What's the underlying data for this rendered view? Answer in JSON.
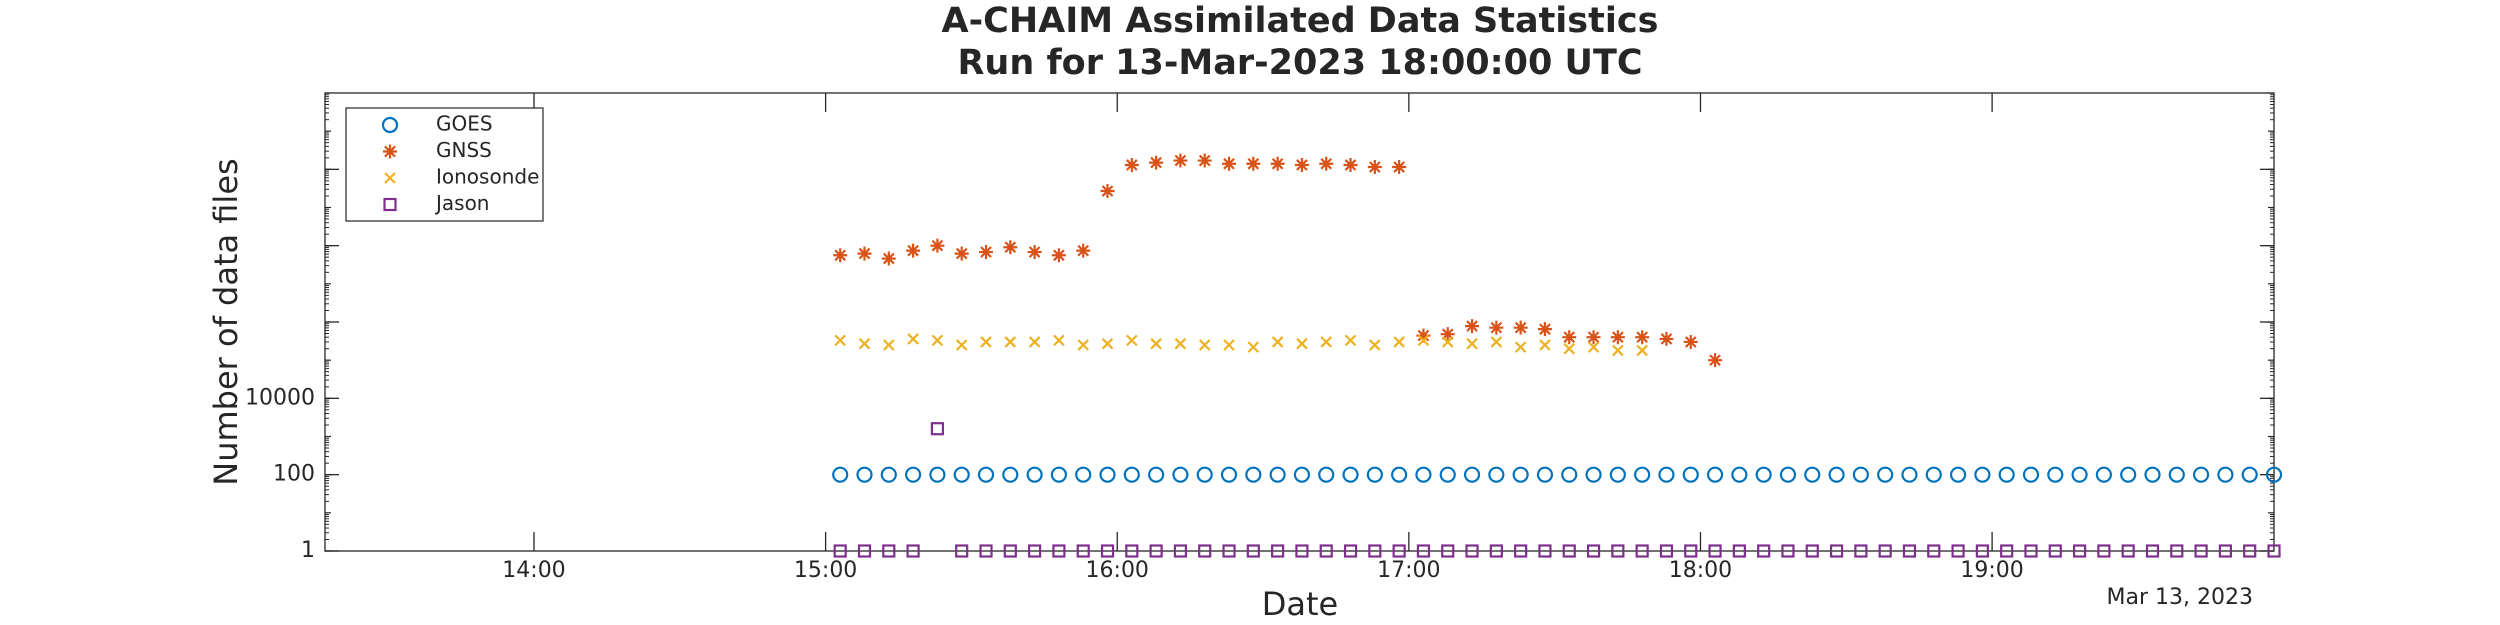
{
  "chart_data": {
    "type": "scatter",
    "title": "A-CHAIM Assimilated Data Statistics",
    "subtitle": "Run for 13-Mar-2023 18:00:00 UTC",
    "x_label": "Date",
    "y_label": "Number of data files",
    "date_note": "Mar 13, 2023",
    "log_y": true,
    "legend": "upper-left",
    "minor_ticks": true,
    "xlim": [
      "13:17",
      "19:58"
    ],
    "xticks": [
      "14:00",
      "15:00",
      "16:00",
      "17:00",
      "18:00",
      "19:00"
    ],
    "ylim": [
      1,
      1000000000000
    ],
    "yticks": [
      1,
      100,
      10000
    ],
    "yticks_unlabeled": [
      1000000,
      100000000,
      10000000000
    ],
    "x": [
      "15:03",
      "15:08",
      "15:13",
      "15:18",
      "15:23",
      "15:28",
      "15:33",
      "15:38",
      "15:43",
      "15:48",
      "15:53",
      "15:58",
      "16:03",
      "16:08",
      "16:13",
      "16:18",
      "16:23",
      "16:28",
      "16:33",
      "16:38",
      "16:43",
      "16:48",
      "16:53",
      "16:58",
      "17:03",
      "17:08",
      "17:13",
      "17:18",
      "17:23",
      "17:28",
      "17:33",
      "17:38",
      "17:43",
      "17:48",
      "17:53",
      "17:58",
      "18:03",
      "18:08",
      "18:13",
      "18:18",
      "18:23",
      "18:28",
      "18:33",
      "18:38",
      "18:43",
      "18:48",
      "18:53",
      "18:58",
      "19:03",
      "19:08",
      "19:13",
      "19:18",
      "19:23",
      "19:28",
      "19:33",
      "19:38",
      "19:43",
      "19:48",
      "19:53",
      "19:58"
    ],
    "series": [
      {
        "name": "GOES",
        "color": "#0072bd",
        "marker": "circle",
        "values": [
          100,
          100,
          100,
          100,
          100,
          100,
          100,
          100,
          100,
          100,
          100,
          100,
          100,
          100,
          100,
          100,
          100,
          100,
          100,
          100,
          100,
          100,
          100,
          100,
          100,
          100,
          100,
          100,
          100,
          100,
          100,
          100,
          100,
          100,
          100,
          100,
          100,
          100,
          100,
          100,
          100,
          100,
          100,
          100,
          100,
          100,
          100,
          100,
          100,
          100,
          100,
          100,
          100,
          100,
          100,
          100,
          100,
          100,
          100,
          100
        ]
      },
      {
        "name": "GNSS",
        "color": "#d95319",
        "marker": "star",
        "values": [
          56000000,
          62000000,
          46000000,
          74000000,
          100000000,
          62000000,
          68000000,
          91000000,
          68000000,
          56000000,
          74000000,
          2700000000,
          13000000000,
          15000000000,
          17000000000,
          17000000000,
          14000000000,
          14000000000,
          14000000000,
          13000000000,
          14000000000,
          13000000000,
          11500000000,
          11500000000,
          440000,
          480000,
          780000,
          710000,
          710000,
          650000,
          400000,
          400000,
          400000,
          400000,
          360000,
          300000,
          100000,
          null,
          null,
          null,
          null,
          null,
          null,
          null,
          null,
          null,
          null,
          null,
          null,
          null,
          null,
          null,
          null,
          null,
          null,
          null,
          null,
          null,
          null,
          null
        ]
      },
      {
        "name": "Ionosonde",
        "color": "#edb120",
        "marker": "cross",
        "values": [
          330000,
          270000,
          250000,
          360000,
          330000,
          250000,
          300000,
          300000,
          300000,
          330000,
          250000,
          270000,
          330000,
          270000,
          270000,
          250000,
          250000,
          220000,
          300000,
          270000,
          300000,
          330000,
          250000,
          300000,
          330000,
          300000,
          270000,
          300000,
          220000,
          250000,
          200000,
          220000,
          180000,
          180000,
          null,
          null,
          null,
          null,
          null,
          null,
          null,
          null,
          null,
          null,
          null,
          null,
          null,
          null,
          null,
          null,
          null,
          null,
          null,
          null,
          null,
          null,
          null,
          null,
          null,
          null
        ]
      },
      {
        "name": "Jason",
        "color": "#7e2f8e",
        "marker": "square",
        "values": [
          1,
          1,
          1,
          1,
          1600,
          1,
          1,
          1,
          1,
          1,
          1,
          1,
          1,
          1,
          1,
          1,
          1,
          1,
          1,
          1,
          1,
          1,
          1,
          1,
          1,
          1,
          1,
          1,
          1,
          1,
          1,
          1,
          1,
          1,
          1,
          1,
          1,
          1,
          1,
          1,
          1,
          1,
          1,
          1,
          1,
          1,
          1,
          1,
          1,
          1,
          1,
          1,
          1,
          1,
          1,
          1,
          1,
          1,
          1,
          1
        ]
      }
    ]
  }
}
